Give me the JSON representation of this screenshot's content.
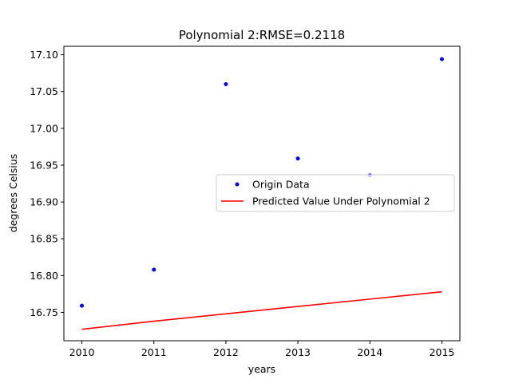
{
  "chart_data": {
    "type": "line",
    "title": "Polynomial 2:RMSE=0.2118",
    "xlabel": "years",
    "ylabel": "degrees Celsius",
    "xlim": [
      2009.75,
      2015.25
    ],
    "ylim": [
      16.7115,
      17.1115
    ],
    "x_ticks": [
      2010,
      2011,
      2012,
      2013,
      2014,
      2015
    ],
    "y_ticks": [
      16.75,
      16.8,
      16.85,
      16.9,
      16.95,
      17.0,
      17.05,
      17.1
    ],
    "grid": false,
    "legend_position": "center-right",
    "series": [
      {
        "name": "Origin Data",
        "style": "points",
        "color": "#0000ff",
        "x": [
          2010,
          2011,
          2012,
          2013,
          2014,
          2015
        ],
        "y": [
          16.759,
          16.808,
          17.06,
          16.959,
          16.936,
          17.094
        ]
      },
      {
        "name": "Predicted Value Under Polynomial 2",
        "style": "line",
        "color": "#ff0000",
        "x": [
          2010,
          2011,
          2012,
          2013,
          2014,
          2015
        ],
        "y": [
          16.727,
          16.738,
          16.748,
          16.758,
          16.768,
          16.778
        ]
      }
    ]
  }
}
